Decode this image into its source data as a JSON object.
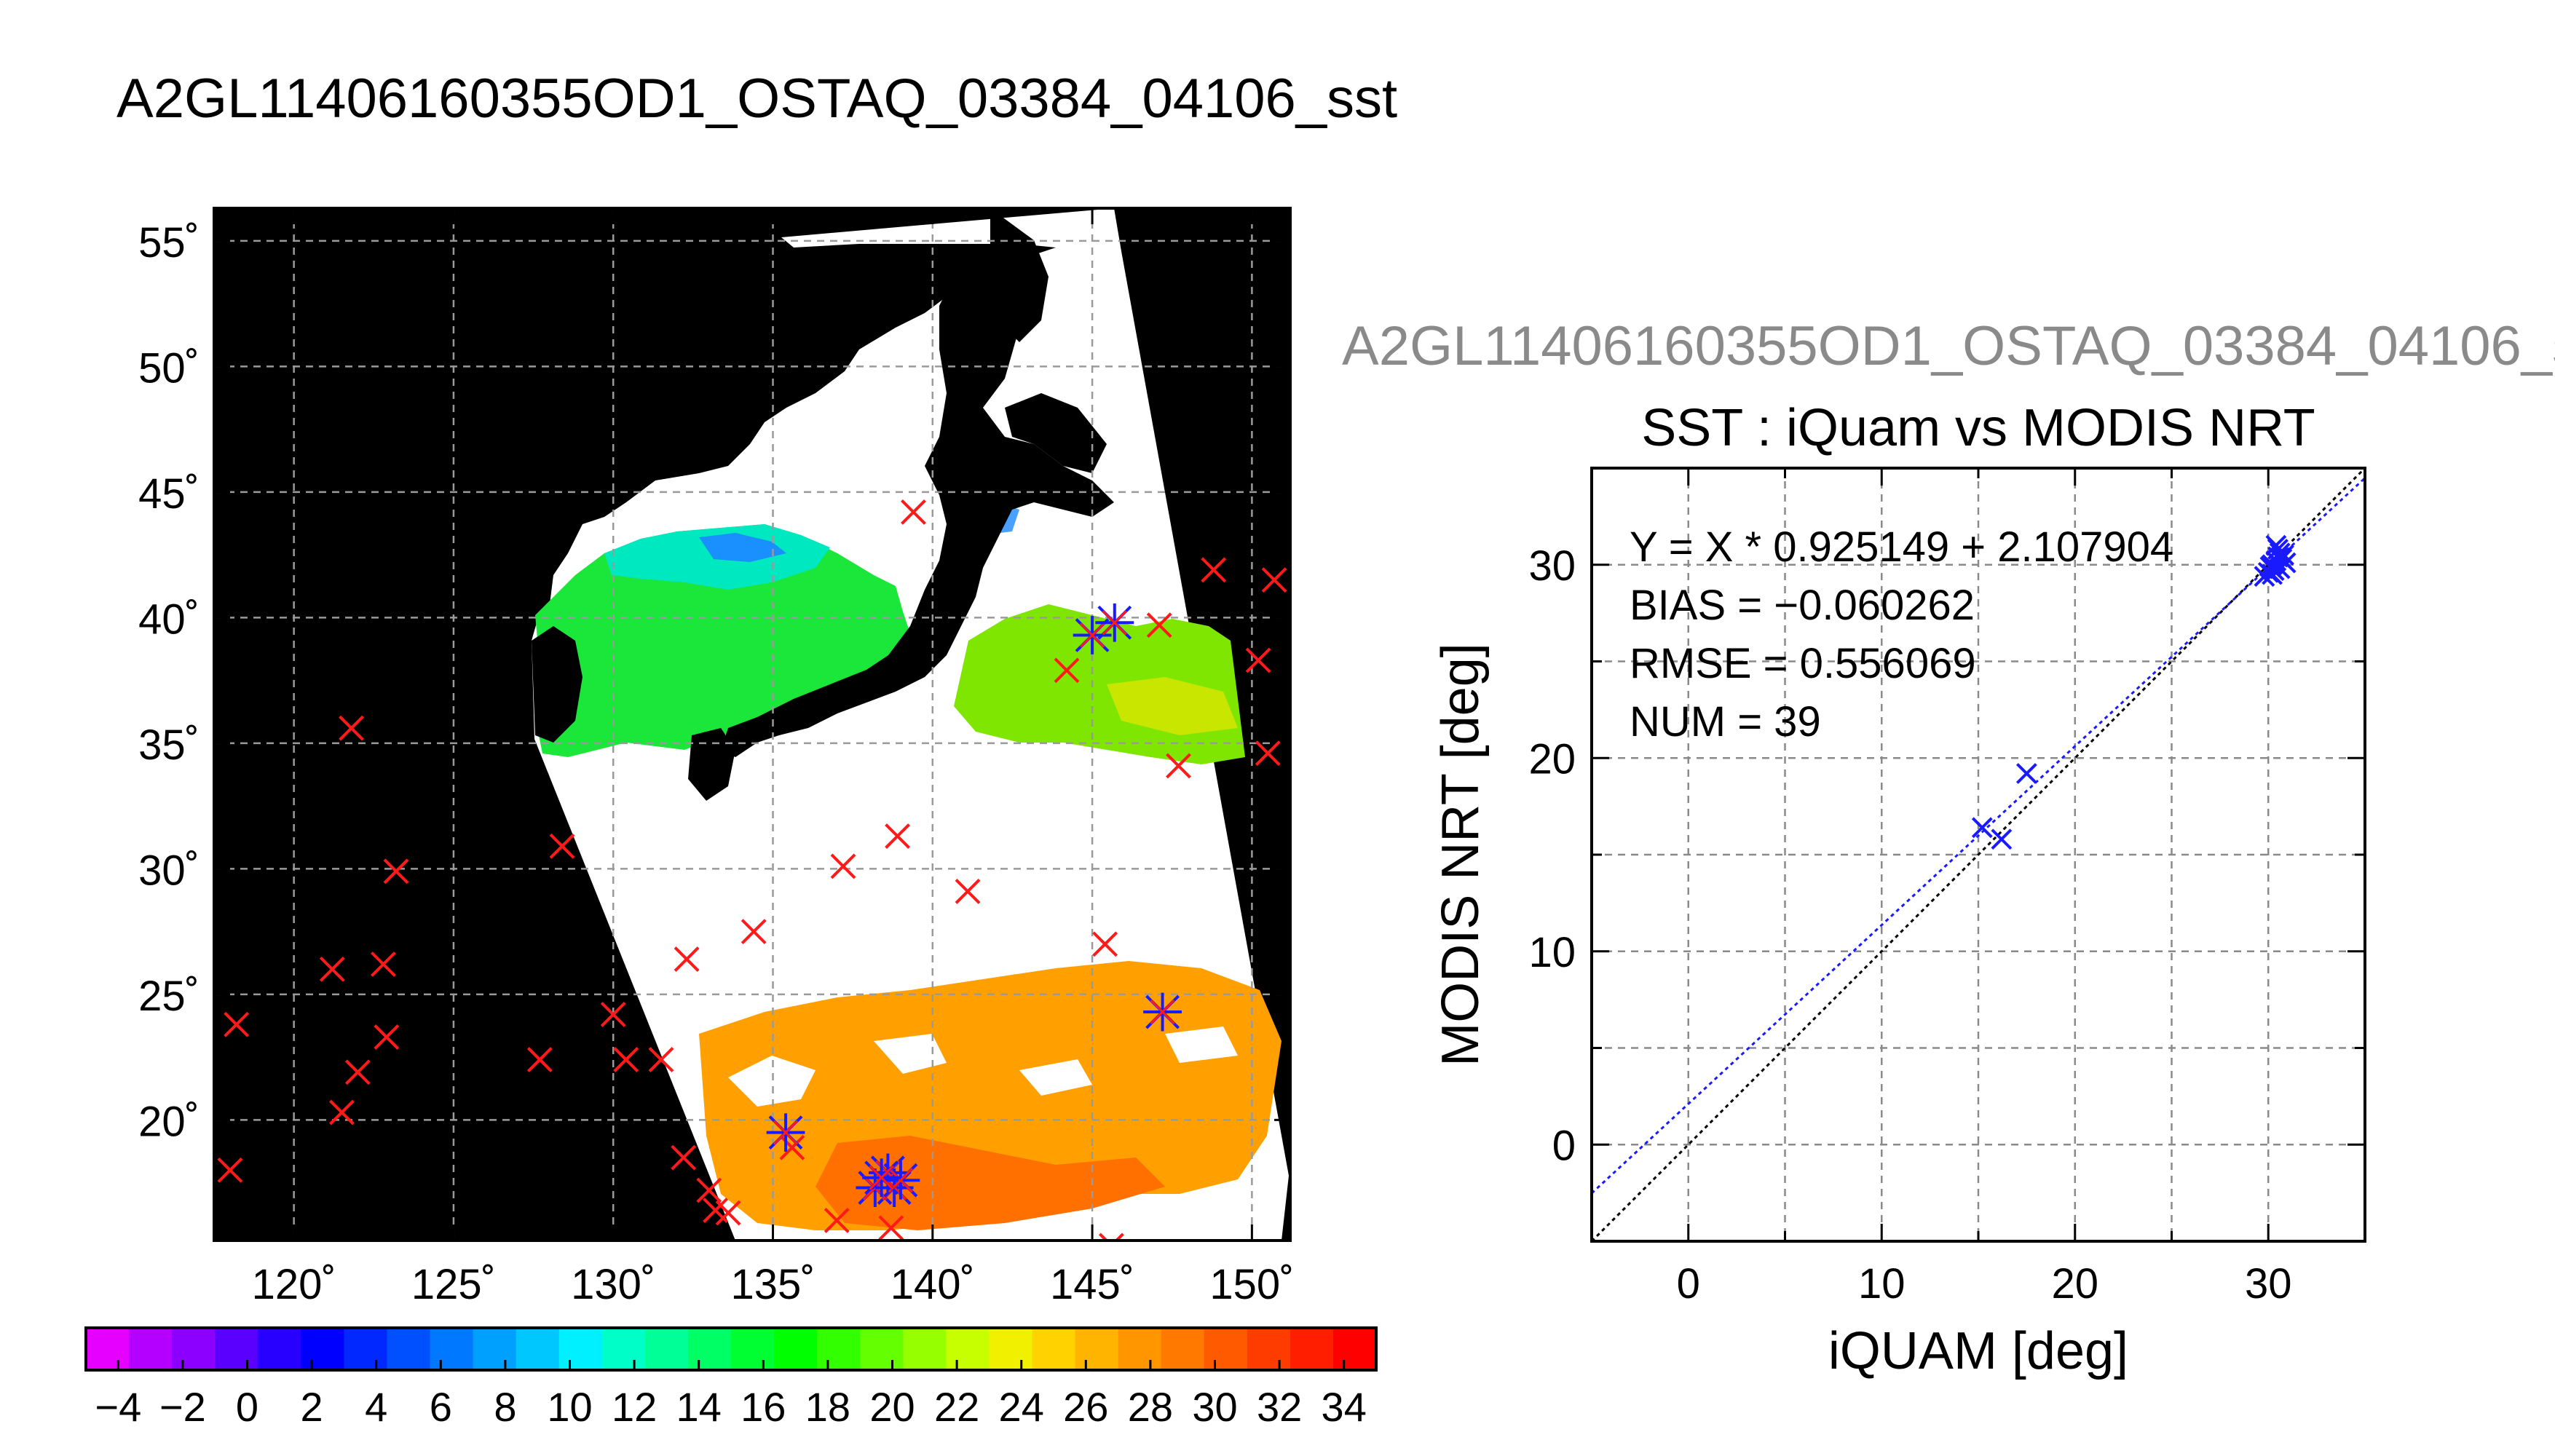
{
  "main_title": "A2GL11406160355OD1_OSTAQ_03384_04106_sst",
  "sub_title": "A2GL11406160355OD1_OSTAQ_03384_04106_s",
  "map": {
    "lat_ticks": [
      {
        "value": 55,
        "label": "55˚"
      },
      {
        "value": 50,
        "label": "50˚"
      },
      {
        "value": 45,
        "label": "45˚"
      },
      {
        "value": 40,
        "label": "40˚"
      },
      {
        "value": 35,
        "label": "35˚"
      },
      {
        "value": 30,
        "label": "30˚"
      },
      {
        "value": 25,
        "label": "25˚"
      },
      {
        "value": 20,
        "label": "20˚"
      }
    ],
    "lon_ticks": [
      {
        "value": 120,
        "label": "120˚"
      },
      {
        "value": 125,
        "label": "125˚"
      },
      {
        "value": 130,
        "label": "130˚"
      },
      {
        "value": 135,
        "label": "135˚"
      },
      {
        "value": 140,
        "label": "140˚"
      },
      {
        "value": 145,
        "label": "145˚"
      },
      {
        "value": 150,
        "label": "150˚"
      }
    ],
    "lon_range": [
      117.5,
      151.2
    ],
    "lat_range": [
      15.2,
      56.3
    ],
    "red_markers": [
      [
        118.2,
        23.8
      ],
      [
        118.0,
        18.0
      ],
      [
        121.8,
        35.6
      ],
      [
        121.2,
        26.0
      ],
      [
        122.8,
        26.2
      ],
      [
        123.2,
        29.9
      ],
      [
        122.0,
        21.9
      ],
      [
        121.5,
        20.3
      ],
      [
        122.9,
        23.3
      ],
      [
        128.4,
        30.9
      ],
      [
        127.7,
        22.4
      ],
      [
        130.0,
        24.2
      ],
      [
        130.4,
        22.4
      ],
      [
        131.5,
        22.4
      ],
      [
        132.3,
        26.4
      ],
      [
        132.2,
        18.5
      ],
      [
        133.0,
        17.2
      ],
      [
        133.2,
        16.4
      ],
      [
        133.6,
        16.3
      ],
      [
        134.4,
        27.5
      ],
      [
        137.2,
        30.1
      ],
      [
        138.9,
        31.3
      ],
      [
        141.1,
        29.1
      ],
      [
        139.4,
        44.2
      ],
      [
        137.0,
        16.0
      ],
      [
        138.7,
        15.7
      ],
      [
        135.6,
        18.9
      ],
      [
        144.2,
        37.9
      ],
      [
        145.4,
        27.0
      ],
      [
        147.1,
        39.7
      ],
      [
        147.7,
        34.1
      ],
      [
        148.8,
        41.9
      ],
      [
        150.2,
        38.3
      ],
      [
        150.7,
        41.5
      ],
      [
        150.5,
        34.6
      ],
      [
        145.6,
        15.0
      ]
    ],
    "blue_markers": [
      [
        145.0,
        39.3
      ],
      [
        145.7,
        39.8
      ],
      [
        147.2,
        24.3
      ],
      [
        135.4,
        19.5
      ],
      [
        138.2,
        17.3
      ],
      [
        138.6,
        17.9
      ],
      [
        138.8,
        17.3
      ],
      [
        139.0,
        17.6
      ],
      [
        138.4,
        17.7
      ]
    ]
  },
  "colorbar": {
    "labels": [
      "−4",
      "−2",
      "0",
      "2",
      "4",
      "6",
      "8",
      "10",
      "12",
      "14",
      "16",
      "18",
      "20",
      "22",
      "24",
      "26",
      "28",
      "30",
      "32",
      "34"
    ],
    "range": [
      -5,
      35
    ],
    "colors": [
      "#e600ff",
      "#b400ff",
      "#8c00ff",
      "#5a00ff",
      "#2800ff",
      "#0000ff",
      "#0028ff",
      "#0050ff",
      "#0078ff",
      "#00a0ff",
      "#00c8ff",
      "#00f0ff",
      "#00ffc8",
      "#00ff96",
      "#00ff64",
      "#00ff32",
      "#00ff00",
      "#32ff00",
      "#64ff00",
      "#96ff00",
      "#c8ff00",
      "#f0f000",
      "#ffd200",
      "#ffb400",
      "#ff9600",
      "#ff7800",
      "#ff5a00",
      "#ff3c00",
      "#ff1e00",
      "#ff0000"
    ]
  },
  "chart_data": {
    "type": "scatter",
    "title": "SST : iQuam vs MODIS NRT",
    "xlabel": "iQUAM [deg]",
    "ylabel": "MODIS NRT [deg]",
    "xlim": [
      -5,
      35
    ],
    "ylim": [
      -5,
      35
    ],
    "xticks": [
      0,
      10,
      20,
      30
    ],
    "yticks": [
      0,
      10,
      20,
      30
    ],
    "grid": true,
    "annotations": [
      "Y = X * 0.925149 + 2.107904",
      "BIAS = −0.060262",
      "RMSE = 0.556069",
      "NUM = 39"
    ],
    "fit": {
      "slope": 0.925149,
      "intercept": 2.107904
    },
    "points": [
      [
        15.2,
        16.4
      ],
      [
        16.2,
        15.8
      ],
      [
        17.5,
        19.2
      ],
      [
        29.8,
        29.4
      ],
      [
        30.0,
        29.6
      ],
      [
        30.1,
        29.9
      ],
      [
        30.2,
        30.0
      ],
      [
        30.3,
        29.7
      ],
      [
        30.4,
        30.2
      ],
      [
        30.5,
        30.4
      ],
      [
        30.6,
        30.6
      ],
      [
        30.5,
        30.8
      ],
      [
        30.4,
        31.0
      ],
      [
        30.7,
        30.3
      ],
      [
        30.8,
        30.5
      ],
      [
        30.2,
        29.5
      ],
      [
        30.6,
        29.8
      ],
      [
        30.9,
        30.1
      ]
    ]
  }
}
